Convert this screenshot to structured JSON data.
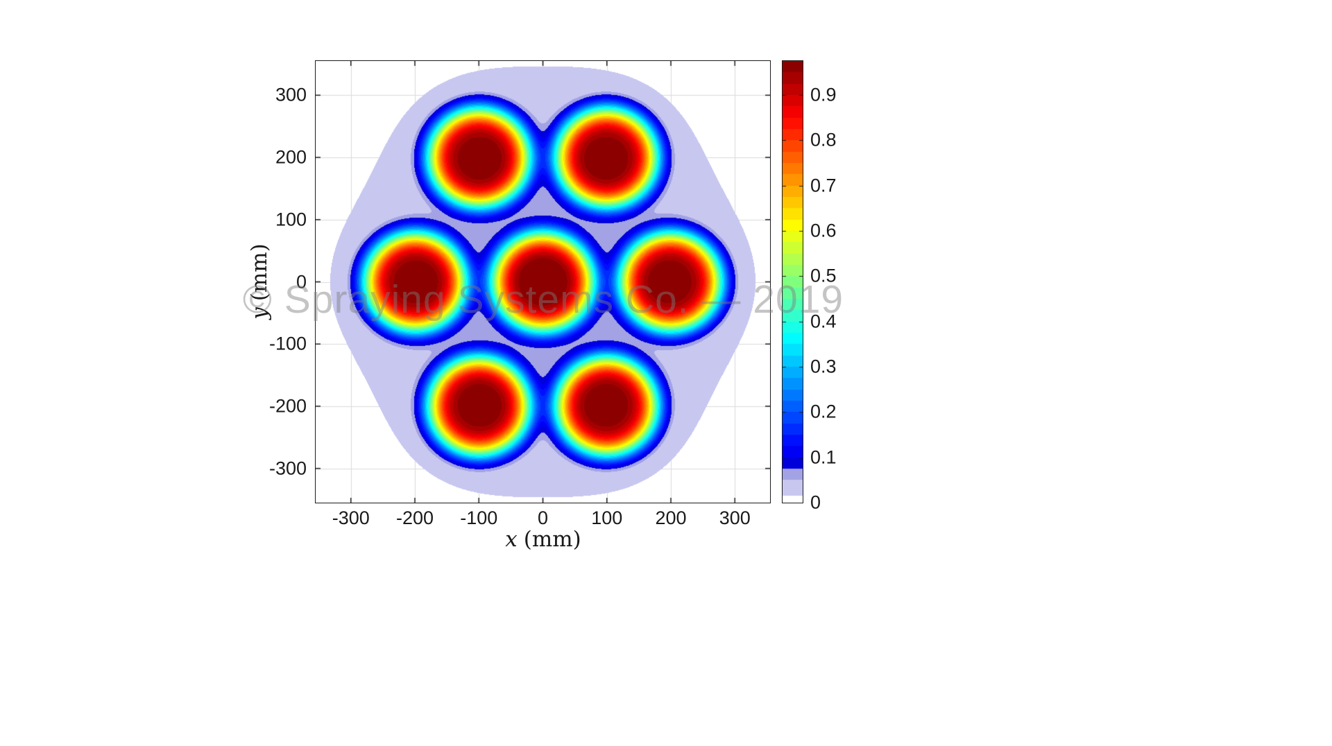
{
  "watermark": {
    "text": "© Spraying Systems Co. — 2019"
  },
  "chart_data": {
    "type": "contour",
    "title": "",
    "description": "Filled contour map (jet colormap) of normalized spray volume flux from seven overlapping spray plumes arranged on a hexagonal grid",
    "xlabel": {
      "var": "x",
      "unit": "(mm)"
    },
    "ylabel": {
      "var": "y",
      "unit": "(mm)"
    },
    "xlim": [
      -355,
      355
    ],
    "ylim": [
      -355,
      355
    ],
    "xticks": [
      -300,
      -200,
      -100,
      0,
      100,
      200,
      300
    ],
    "yticks": [
      -300,
      -200,
      -100,
      0,
      100,
      200,
      300
    ],
    "grid": true,
    "levels_step": 0.025,
    "value_min": 0,
    "value_max": 0.975,
    "colormap": "jet",
    "low_band_colors": [
      "#c7c7f0",
      "#a2a2e4"
    ],
    "field": {
      "model": "sum over peaks of amp*exp(-(r/core_radius)^core_exponent) + tail_amp*exp(-(r/tail_width)^2)",
      "peaks": [
        {
          "x": -100,
          "y": 200,
          "amp": 0.93
        },
        {
          "x": 100,
          "y": 200,
          "amp": 0.93
        },
        {
          "x": -200,
          "y": 0,
          "amp": 0.93
        },
        {
          "x": 0,
          "y": 0,
          "amp": 0.93
        },
        {
          "x": 200,
          "y": 0,
          "amp": 0.93
        },
        {
          "x": -100,
          "y": -200,
          "amp": 0.93
        },
        {
          "x": 100,
          "y": -200,
          "amp": 0.93
        }
      ],
      "core_radius_mm": 80,
      "core_exponent": 4.5,
      "tail_amp": 0.03,
      "tail_width_mm": 150,
      "peak_value": 0.975,
      "white_threshold": 0.015
    },
    "colorbar": {
      "position": "right",
      "ticks": [
        0,
        0.1,
        0.2,
        0.3,
        0.4,
        0.5,
        0.6,
        0.7,
        0.8,
        0.9
      ]
    }
  }
}
